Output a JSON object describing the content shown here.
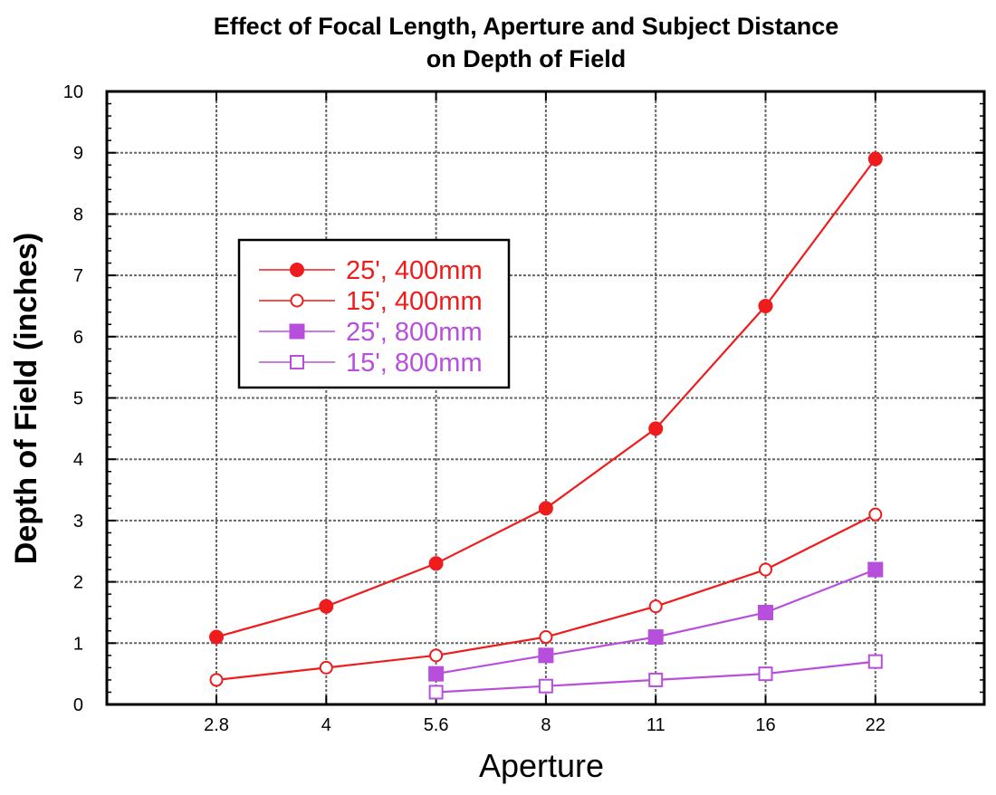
{
  "chart_data": {
    "type": "line",
    "title_lines": [
      "Effect of Focal Length, Aperture and Subject Distance",
      "on Depth of Field"
    ],
    "xlabel": "Aperture",
    "ylabel": "Depth of Field (inches)",
    "categories": [
      "2.8",
      "4",
      "5.6",
      "8",
      "11",
      "16",
      "22"
    ],
    "ylim": [
      0,
      10
    ],
    "yticks": [
      0,
      1,
      2,
      3,
      4,
      5,
      6,
      7,
      8,
      9,
      10
    ],
    "grid": true,
    "legend_position": "upper-left",
    "series": [
      {
        "name": "25', 400mm",
        "color": "#ee1c1c",
        "marker": "circle-filled",
        "values": [
          1.1,
          1.6,
          2.3,
          3.2,
          4.5,
          6.5,
          8.9
        ]
      },
      {
        "name": "15', 400mm",
        "color": "#ee1c1c",
        "marker": "circle-open",
        "values": [
          0.4,
          0.6,
          0.8,
          1.1,
          1.6,
          2.2,
          3.1
        ]
      },
      {
        "name": "25', 800mm",
        "color": "#b84fdc",
        "marker": "square-filled",
        "values": [
          null,
          null,
          0.5,
          0.8,
          1.1,
          1.5,
          2.2
        ]
      },
      {
        "name": "15', 800mm",
        "color": "#b84fdc",
        "marker": "square-open",
        "values": [
          null,
          null,
          0.2,
          0.3,
          0.4,
          0.5,
          0.7
        ]
      }
    ]
  }
}
